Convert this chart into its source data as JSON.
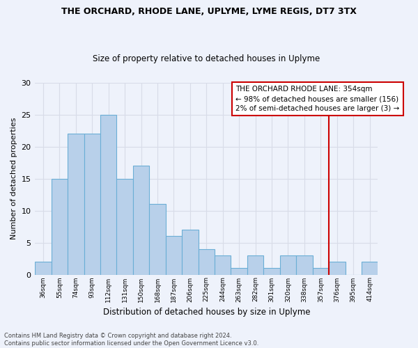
{
  "title": "THE ORCHARD, RHODE LANE, UPLYME, LYME REGIS, DT7 3TX",
  "subtitle": "Size of property relative to detached houses in Uplyme",
  "xlabel": "Distribution of detached houses by size in Uplyme",
  "ylabel": "Number of detached properties",
  "footnote1": "Contains HM Land Registry data © Crown copyright and database right 2024.",
  "footnote2": "Contains public sector information licensed under the Open Government Licence v3.0.",
  "categories": [
    "36sqm",
    "55sqm",
    "74sqm",
    "93sqm",
    "112sqm",
    "131sqm",
    "150sqm",
    "168sqm",
    "187sqm",
    "206sqm",
    "225sqm",
    "244sqm",
    "263sqm",
    "282sqm",
    "301sqm",
    "320sqm",
    "338sqm",
    "357sqm",
    "376sqm",
    "395sqm",
    "414sqm"
  ],
  "values": [
    2,
    15,
    22,
    22,
    25,
    15,
    17,
    11,
    6,
    7,
    4,
    3,
    1,
    3,
    1,
    3,
    3,
    1,
    2,
    0,
    2
  ],
  "bar_color": "#b8d0ea",
  "bar_edge_color": "#6baed6",
  "background_color": "#eef2fb",
  "grid_color": "#d8dce8",
  "ylim": [
    0,
    30
  ],
  "yticks": [
    0,
    5,
    10,
    15,
    20,
    25,
    30
  ],
  "property_line_color": "#cc0000",
  "property_line_idx": 17,
  "annotation_text": "THE ORCHARD RHODE LANE: 354sqm\n← 98% of detached houses are smaller (156)\n2% of semi-detached houses are larger (3) →",
  "annotation_box_color": "#ffffff",
  "annotation_box_edge": "#cc0000"
}
